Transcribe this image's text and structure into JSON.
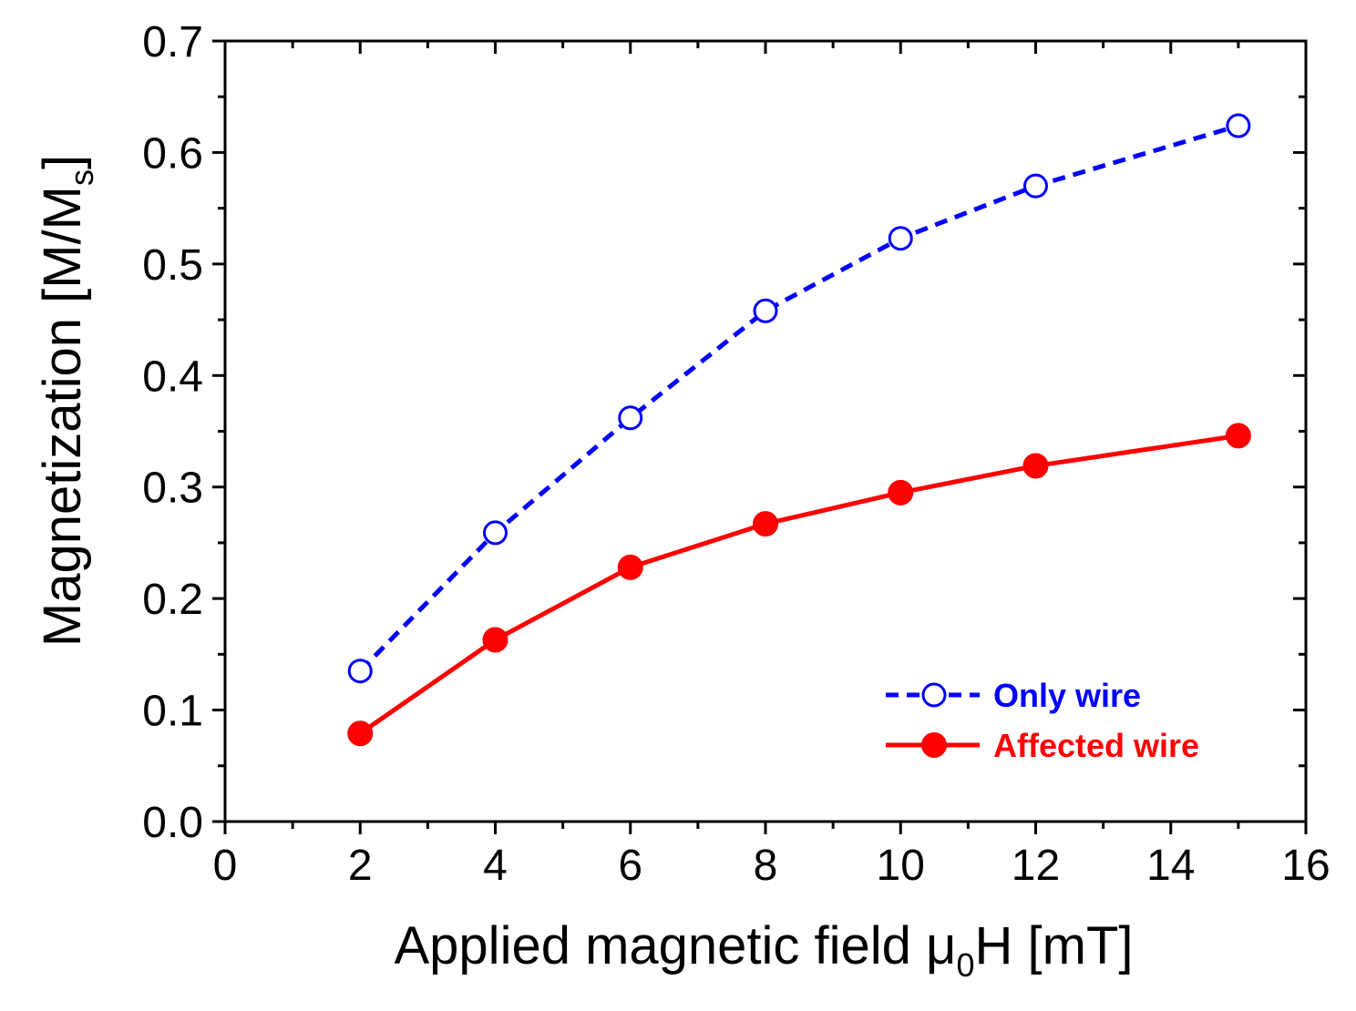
{
  "chart_data": {
    "type": "line",
    "xlabel": "Applied magnetic field μ0H [mT]",
    "xlabel_parts": {
      "main": "Applied magnetic field μ",
      "sub": "0",
      "tail": "H [mT]"
    },
    "ylabel": "Magnetization [M/Ms]",
    "ylabel_parts": {
      "main": "Magnetization [M/M",
      "sub": "s",
      "tail": "]"
    },
    "xlim": [
      0,
      16
    ],
    "ylim": [
      0.0,
      0.7
    ],
    "xticks": [
      0,
      2,
      4,
      6,
      8,
      10,
      12,
      14,
      16
    ],
    "xtick_labels": [
      "0",
      "2",
      "4",
      "6",
      "8",
      "10",
      "12",
      "14",
      "16"
    ],
    "yticks": [
      0.0,
      0.1,
      0.2,
      0.3,
      0.4,
      0.5,
      0.6,
      0.7
    ],
    "ytick_labels": [
      "0.0",
      "0.1",
      "0.2",
      "0.3",
      "0.4",
      "0.5",
      "0.6",
      "0.7"
    ],
    "grid": false,
    "legend_position": "bottom-right",
    "x": [
      2,
      4,
      6,
      8,
      10,
      12,
      15
    ],
    "series": [
      {
        "name": "Only wire",
        "values": [
          0.135,
          0.259,
          0.362,
          0.458,
          0.523,
          0.57,
          0.624
        ],
        "color": "#0000ff",
        "line_style": "dashed",
        "marker": "open-circle"
      },
      {
        "name": "Affected wire",
        "values": [
          0.079,
          0.163,
          0.228,
          0.267,
          0.295,
          0.319,
          0.346
        ],
        "color": "#ff0000",
        "line_style": "solid",
        "marker": "filled-circle"
      }
    ]
  }
}
